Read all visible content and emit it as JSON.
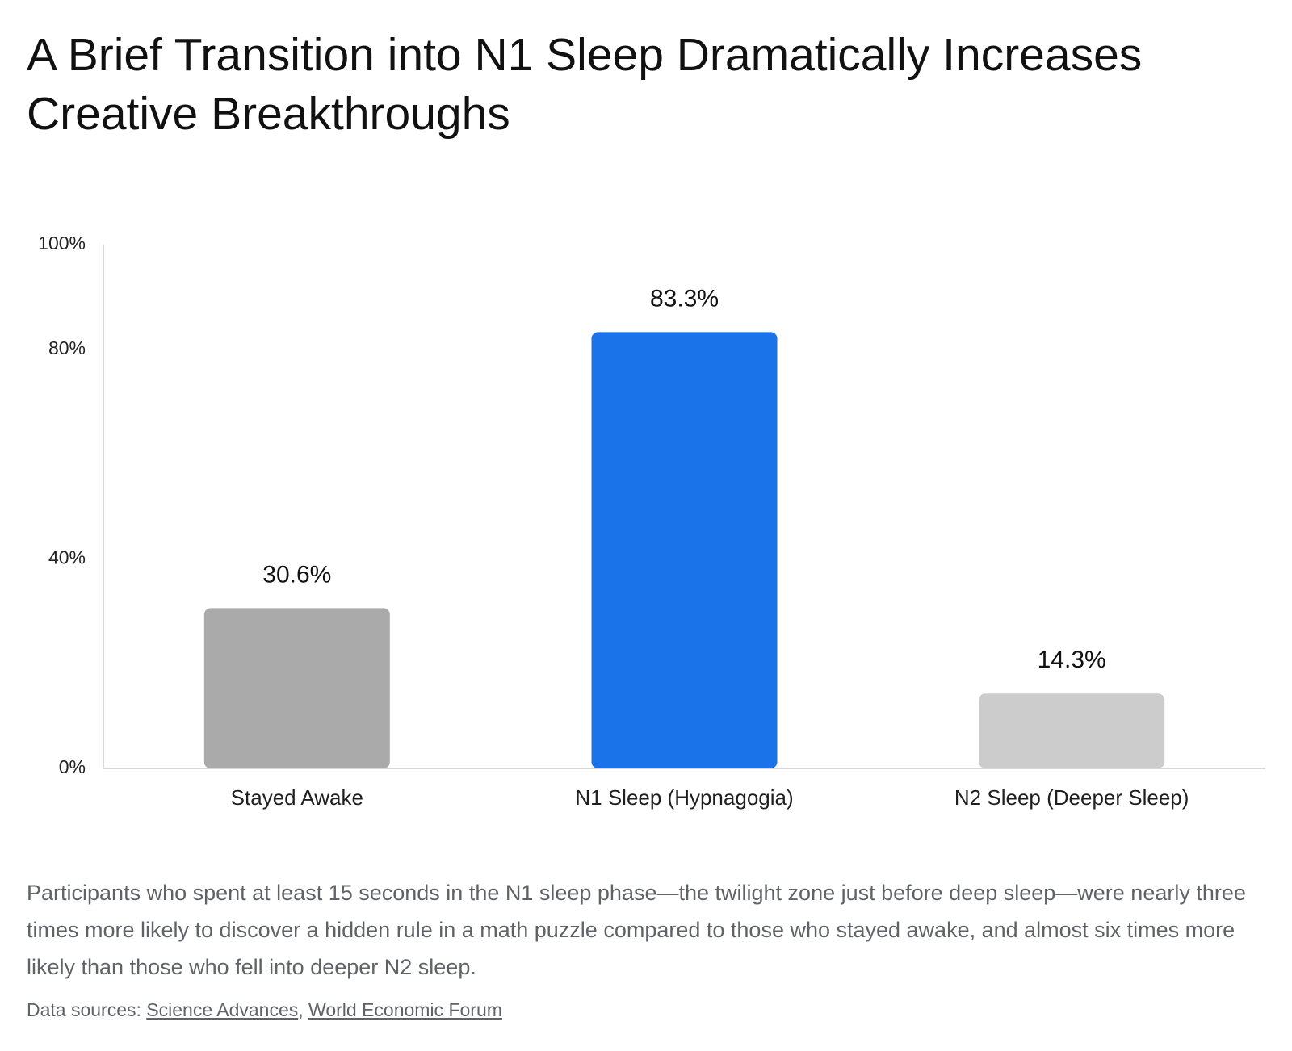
{
  "title": "A Brief Transition into N1 Sleep Dramatically Increases Creative Breakthroughs",
  "chart_data": {
    "type": "bar",
    "categories": [
      "Stayed Awake",
      "N1 Sleep (Hypnagogia)",
      "N2 Sleep (Deeper Sleep)"
    ],
    "values": [
      30.6,
      83.3,
      14.3
    ],
    "value_labels": [
      "30.6%",
      "83.3%",
      "14.3%"
    ],
    "colors": [
      "#aaaaaa",
      "#1a73e8",
      "#cccccc"
    ],
    "ylim": [
      0,
      100
    ],
    "yticks": [
      {
        "value": 0,
        "label": "0%"
      },
      {
        "value": 40,
        "label": "40%"
      },
      {
        "value": 80,
        "label": "80%"
      },
      {
        "value": 100,
        "label": "100%"
      }
    ],
    "grid": false
  },
  "caption": "Participants who spent at least 15 seconds in the N1 sleep phase—the twilight zone just before deep sleep—were nearly three times more likely to discover a hidden rule in a math puzzle compared to those who stayed awake, and almost six times more likely than those who fell into deeper N2 sleep.",
  "sources": {
    "label": "Data sources:",
    "links": [
      "Science Advances",
      "World Economic Forum"
    ]
  }
}
